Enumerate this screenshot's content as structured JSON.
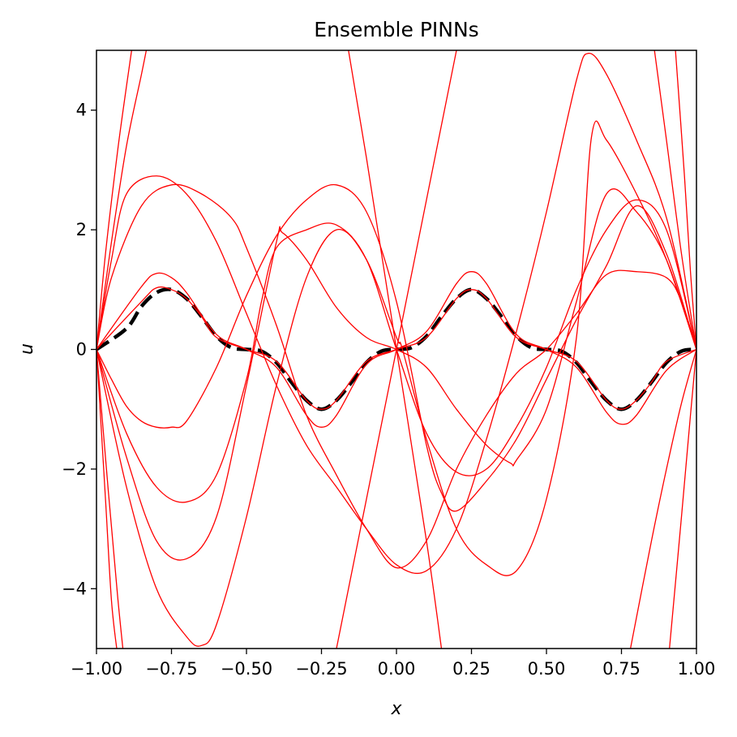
{
  "chart_data": {
    "type": "line",
    "title": "Ensemble PINNs",
    "xlabel": "x",
    "ylabel": "u",
    "xlim": [
      -1.0,
      1.0
    ],
    "ylim": [
      -5,
      5
    ],
    "xticks": [
      -1.0,
      -0.75,
      -0.5,
      -0.25,
      0.0,
      0.25,
      0.5,
      0.75,
      1.0
    ],
    "xtick_labels": [
      "−1.00",
      "−0.75",
      "−0.50",
      "−0.25",
      "0.00",
      "0.25",
      "0.50",
      "0.75",
      "1.00"
    ],
    "yticks": [
      -4,
      -2,
      0,
      2,
      4
    ],
    "ytick_labels": [
      "−4",
      "−2",
      "0",
      "2",
      "4"
    ],
    "grid": false,
    "reference": {
      "color": "#000000",
      "style": "dashed",
      "x": [
        -1.0,
        -0.9,
        -0.85,
        -0.8,
        -0.75,
        -0.7,
        -0.65,
        -0.6,
        -0.55,
        -0.5,
        -0.45,
        -0.4,
        -0.35,
        -0.3,
        -0.25,
        -0.2,
        -0.15,
        -0.1,
        -0.05,
        0.0,
        0.05,
        0.1,
        0.15,
        0.2,
        0.25,
        0.3,
        0.35,
        0.4,
        0.45,
        0.5,
        0.55,
        0.6,
        0.65,
        0.7,
        0.75,
        0.8,
        0.85,
        0.9,
        0.95,
        1.0
      ],
      "y": [
        0.0,
        0.35,
        0.72,
        0.95,
        1.0,
        0.85,
        0.55,
        0.22,
        0.03,
        0.0,
        -0.03,
        -0.22,
        -0.55,
        -0.85,
        -1.0,
        -0.85,
        -0.55,
        -0.22,
        -0.03,
        0.0,
        0.03,
        0.22,
        0.55,
        0.85,
        1.0,
        0.85,
        0.55,
        0.22,
        0.03,
        0.0,
        -0.03,
        -0.22,
        -0.55,
        -0.85,
        -1.0,
        -0.85,
        -0.55,
        -0.22,
        -0.03,
        0.0
      ]
    },
    "ensemble": {
      "color": "#ff0000",
      "series": [
        {
          "x": [
            -1.0,
            -0.85,
            -0.8,
            -0.75,
            -0.7,
            -0.65,
            -0.6,
            -0.5,
            -0.4,
            -0.3,
            -0.25,
            -0.2,
            -0.1,
            0.0,
            0.1,
            0.2,
            0.25,
            0.3,
            0.4,
            0.5,
            0.6,
            0.7,
            0.75,
            0.8,
            0.85,
            0.9,
            1.0
          ],
          "y": [
            0.0,
            0.8,
            1.03,
            1.0,
            0.85,
            0.55,
            0.2,
            0.0,
            -0.2,
            -0.85,
            -1.0,
            -0.85,
            -0.2,
            0.0,
            0.2,
            0.85,
            1.0,
            0.85,
            0.2,
            0.0,
            -0.2,
            -0.85,
            -1.0,
            -0.85,
            -0.55,
            -0.2,
            0.0
          ]
        },
        {
          "x": [
            -1.0,
            -0.85,
            -0.8,
            -0.75,
            -0.7,
            -0.6,
            -0.5,
            -0.4,
            -0.3,
            -0.25,
            -0.2,
            -0.1,
            0.0,
            0.1,
            0.2,
            0.25,
            0.3,
            0.4,
            0.5,
            0.6,
            0.7,
            0.75,
            0.8,
            0.9,
            1.0
          ],
          "y": [
            0.0,
            1.05,
            1.27,
            1.2,
            0.95,
            0.25,
            0.0,
            -0.3,
            -1.1,
            -1.3,
            -1.1,
            -0.25,
            0.0,
            0.3,
            1.1,
            1.3,
            1.1,
            0.25,
            0.0,
            -0.3,
            -1.05,
            -1.25,
            -1.1,
            -0.35,
            0.0
          ]
        },
        {
          "x": [
            -1.0,
            -0.95,
            -0.85,
            -0.75,
            -0.65,
            -0.55,
            -0.5,
            -0.4,
            -0.3,
            -0.2,
            -0.1,
            0.0,
            0.1,
            0.2,
            0.3,
            0.4,
            0.5,
            0.6,
            0.7,
            0.8,
            0.9,
            0.95,
            1.0
          ],
          "y": [
            0.0,
            1.2,
            2.4,
            2.75,
            2.6,
            2.2,
            1.7,
            0.4,
            -1.1,
            -2.1,
            -3.0,
            -3.65,
            -3.2,
            -2.0,
            -1.1,
            -0.4,
            0.0,
            0.6,
            1.25,
            1.3,
            1.2,
            0.8,
            0.0
          ]
        },
        {
          "x": [
            -1.0,
            -0.95,
            -0.9,
            -0.85,
            -0.8,
            -0.75,
            -0.7,
            -0.6,
            -0.5,
            -0.4,
            -0.3,
            -0.2,
            -0.1,
            0.0,
            0.1,
            0.15,
            0.2,
            0.3,
            0.4,
            0.5,
            0.6,
            0.7,
            0.8,
            0.9,
            1.0
          ],
          "y": [
            0.0,
            -0.5,
            -0.95,
            -1.2,
            -1.3,
            -1.3,
            -1.2,
            -0.3,
            0.9,
            1.9,
            2.5,
            2.75,
            2.3,
            0.8,
            -1.6,
            -2.4,
            -2.7,
            -2.2,
            -1.5,
            -0.5,
            0.5,
            1.4,
            2.4,
            1.6,
            0.0
          ]
        },
        {
          "x": [
            -1.0,
            -0.9,
            -0.8,
            -0.7,
            -0.6,
            -0.5,
            -0.45,
            -0.4,
            -0.3,
            -0.2,
            -0.1,
            0.0,
            0.1,
            0.2,
            0.3,
            0.4,
            0.5,
            0.6,
            0.7,
            0.8,
            0.9,
            1.0
          ],
          "y": [
            0.0,
            -1.4,
            -2.3,
            -2.55,
            -2.1,
            -0.5,
            0.8,
            1.7,
            2.0,
            2.08,
            1.5,
            0.0,
            -1.4,
            -2.05,
            -2.0,
            -1.3,
            -0.3,
            1.0,
            2.0,
            2.5,
            2.0,
            0.0
          ]
        },
        {
          "x": [
            -1.0,
            -0.9,
            -0.8,
            -0.7,
            -0.6,
            -0.5,
            -0.4,
            -0.38,
            -0.3,
            -0.2,
            -0.1,
            0.0,
            0.1,
            0.2,
            0.3,
            0.38,
            0.4,
            0.5,
            0.6,
            0.7,
            0.8,
            0.9,
            1.0
          ],
          "y": [
            0.0,
            -1.8,
            -3.2,
            -3.5,
            -2.8,
            -0.6,
            1.8,
            1.95,
            1.5,
            0.7,
            0.2,
            0.0,
            -0.3,
            -1.0,
            -1.6,
            -1.9,
            -1.85,
            -1.0,
            0.8,
            2.6,
            2.3,
            1.5,
            0.0
          ]
        },
        {
          "x": [
            -1.0,
            -0.9,
            -0.8,
            -0.7,
            -0.65,
            -0.6,
            -0.5,
            -0.4,
            -0.3,
            -0.2,
            -0.1,
            0.0,
            0.02,
            0.1,
            0.2,
            0.3,
            0.4,
            0.5,
            0.6,
            0.65,
            0.7,
            0.8,
            0.9,
            1.0
          ],
          "y": [
            0.0,
            -2.3,
            -4.0,
            -4.8,
            -4.95,
            -4.6,
            -2.8,
            -0.6,
            1.2,
            2.0,
            1.5,
            0.2,
            0.0,
            -1.5,
            -3.0,
            -3.6,
            -3.7,
            -2.5,
            0.2,
            3.55,
            3.5,
            2.6,
            1.5,
            0.0
          ]
        },
        {
          "x": [
            -1.0,
            -0.95,
            -0.9,
            -0.8,
            -0.7,
            -0.6,
            -0.5,
            -0.4,
            -0.3,
            -0.2,
            -0.1,
            0.0,
            0.1,
            0.2,
            0.3,
            0.4,
            0.5,
            0.6,
            0.64,
            0.7,
            0.8,
            0.9,
            1.0
          ],
          "y": [
            0.0,
            1.5,
            2.6,
            2.9,
            2.6,
            1.8,
            0.6,
            -0.6,
            -1.6,
            -2.3,
            -3.0,
            -3.6,
            -3.7,
            -3.0,
            -1.5,
            0.3,
            2.3,
            4.5,
            4.95,
            4.6,
            3.5,
            2.2,
            0.0
          ]
        },
        {
          "x": [
            -1.0,
            -0.95,
            -0.9,
            -0.85,
            -0.83
          ],
          "y": [
            0.0,
            1.8,
            3.4,
            4.6,
            5.1
          ]
        },
        {
          "x": [
            -1.0,
            -0.96,
            -0.93,
            -0.91
          ],
          "y": [
            0.0,
            -2.4,
            -4.1,
            -5.1
          ]
        },
        {
          "x": [
            -1.0,
            -0.97,
            -0.93,
            -0.9,
            -0.88
          ],
          "y": [
            0.0,
            1.6,
            3.3,
            4.4,
            5.1
          ]
        },
        {
          "x": [
            -1.0,
            -0.97,
            -0.95,
            -0.93
          ],
          "y": [
            0.0,
            -2.5,
            -4.2,
            -5.1
          ]
        },
        {
          "x": [
            -0.2,
            -0.1,
            0.0,
            0.1,
            0.2
          ],
          "y": [
            -5.0,
            -2.5,
            0.0,
            2.5,
            5.0
          ]
        },
        {
          "x": [
            -0.16,
            -0.1,
            0.0,
            0.1,
            0.15
          ],
          "y": [
            5.0,
            3.2,
            0.0,
            -3.2,
            -5.0
          ]
        },
        {
          "x": [
            0.78,
            0.85,
            0.9,
            0.95,
            1.0
          ],
          "y": [
            -5.0,
            -3.2,
            -2.0,
            -0.9,
            0.0
          ]
        },
        {
          "x": [
            0.86,
            0.9,
            0.95,
            1.0
          ],
          "y": [
            5.0,
            3.5,
            1.6,
            0.0
          ]
        },
        {
          "x": [
            0.91,
            0.95,
            0.98,
            1.0
          ],
          "y": [
            -5.0,
            -2.8,
            -1.1,
            0.0
          ]
        },
        {
          "x": [
            0.93,
            0.96,
            0.98,
            1.0
          ],
          "y": [
            5.0,
            2.9,
            1.3,
            0.0
          ]
        }
      ]
    }
  }
}
